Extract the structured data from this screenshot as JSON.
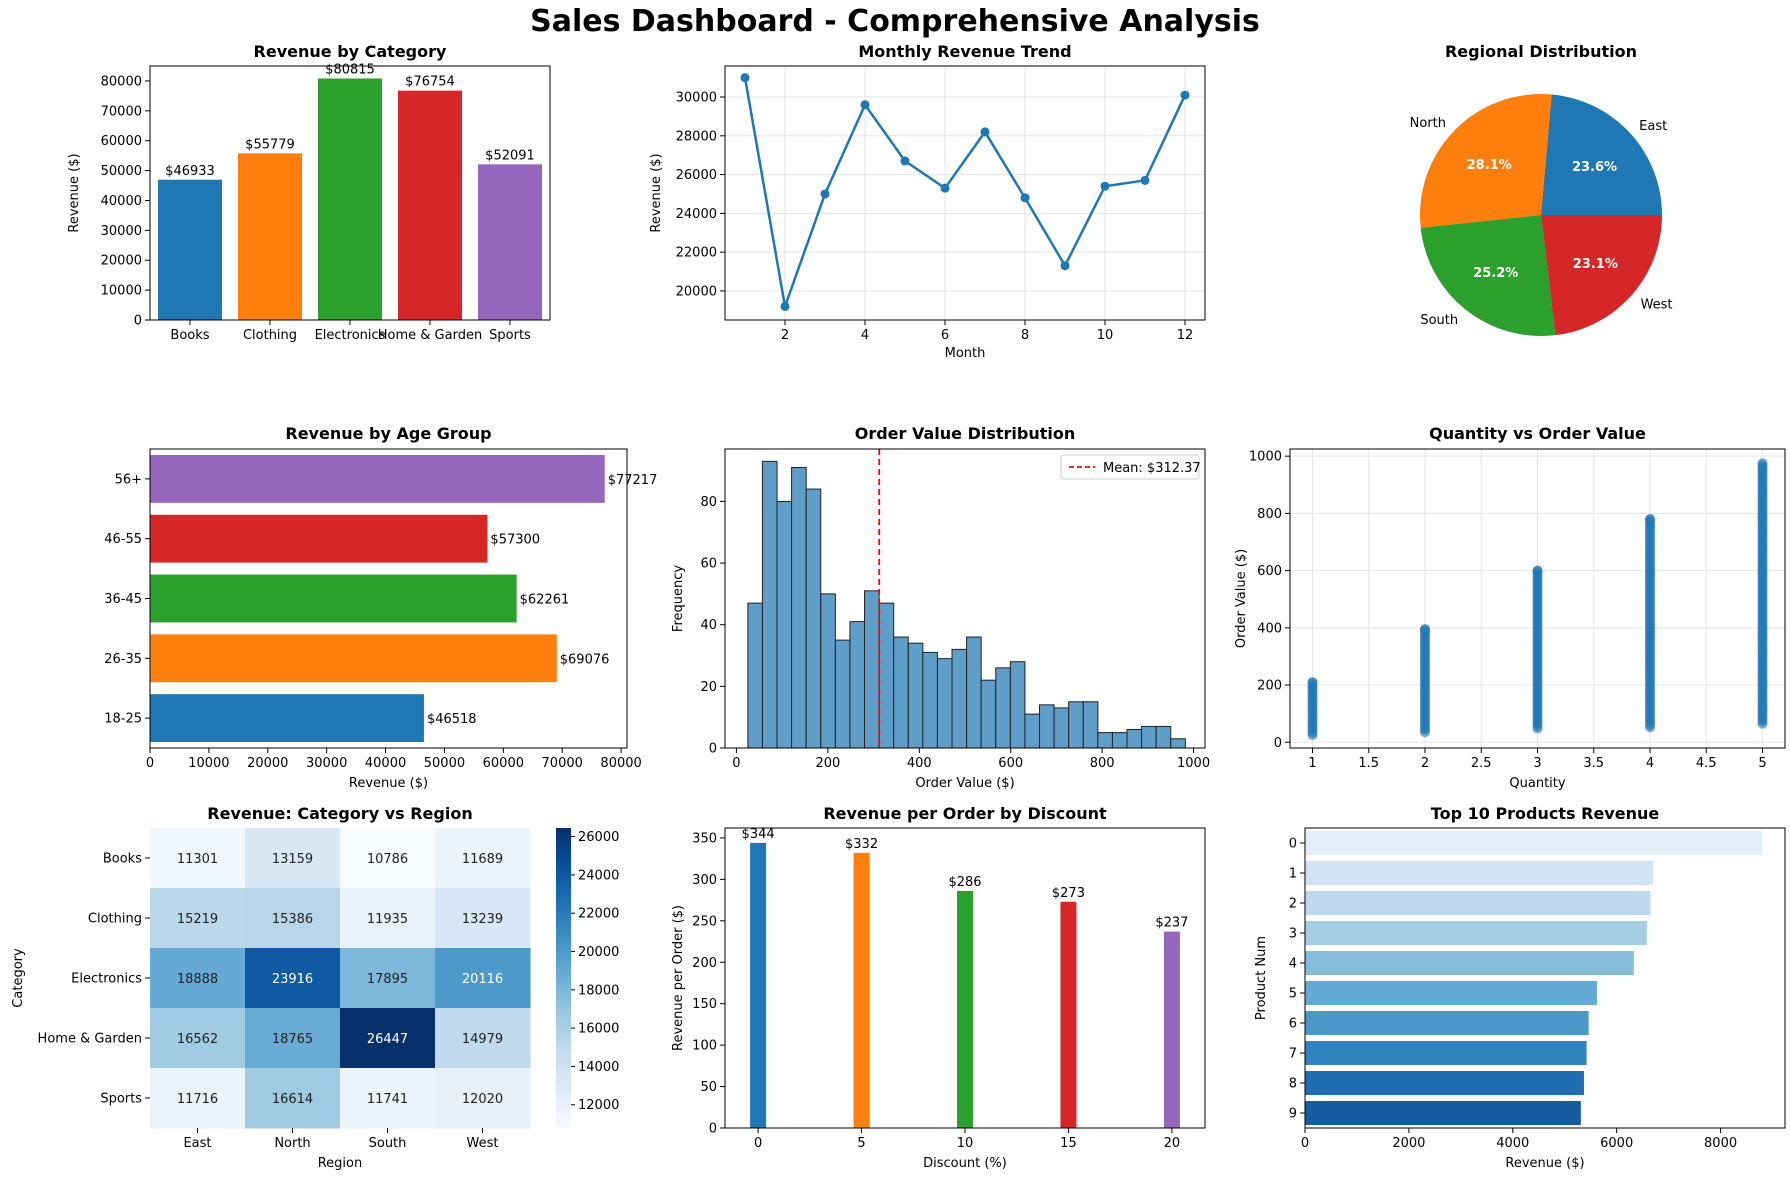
{
  "suptitle": "Sales Dashboard - Comprehensive Analysis",
  "chart_data": [
    {
      "id": "cat",
      "type": "bar",
      "title": "Revenue by Category",
      "xlabel": "",
      "ylabel": "Revenue ($)",
      "categories": [
        "Books",
        "Clothing",
        "Electronics",
        "Home & Garden",
        "Sports"
      ],
      "values": [
        46933,
        55779,
        80815,
        76754,
        52091
      ],
      "value_labels": [
        "$46933",
        "$55779",
        "$80815",
        "$76754",
        "$52091"
      ],
      "colors": [
        "#1f77b4",
        "#ff7f0e",
        "#2ca02c",
        "#d62728",
        "#9467bd"
      ],
      "ylim": [
        0,
        85000
      ],
      "yticks": [
        0,
        10000,
        20000,
        30000,
        40000,
        50000,
        60000,
        70000,
        80000
      ],
      "grid": false
    },
    {
      "id": "month",
      "type": "line",
      "title": "Monthly Revenue Trend",
      "xlabel": "Month",
      "ylabel": "Revenue ($)",
      "x": [
        1,
        2,
        3,
        4,
        5,
        6,
        7,
        8,
        9,
        10,
        11,
        12
      ],
      "y": [
        31000,
        19200,
        25000,
        29600,
        26700,
        25300,
        28200,
        24800,
        21300,
        25400,
        25700,
        30100
      ],
      "xlim": [
        0.5,
        12.5
      ],
      "ylim": [
        18500,
        31600
      ],
      "xticks": [
        2,
        4,
        6,
        8,
        10,
        12
      ],
      "yticks": [
        20000,
        22000,
        24000,
        26000,
        28000,
        30000
      ],
      "color": "#1f77b4",
      "grid": true
    },
    {
      "id": "region",
      "type": "pie",
      "title": "Regional Distribution",
      "labels": [
        "East",
        "North",
        "South",
        "West"
      ],
      "values": [
        23.6,
        28.1,
        25.2,
        23.1
      ],
      "pct_labels": [
        "23.6%",
        "28.1%",
        "25.2%",
        "23.1%"
      ],
      "colors": [
        "#1f77b4",
        "#ff7f0e",
        "#2ca02c",
        "#d62728"
      ]
    },
    {
      "id": "age",
      "type": "bar",
      "orientation": "horizontal",
      "title": "Revenue by Age Group",
      "xlabel": "Revenue ($)",
      "ylabel": "",
      "categories": [
        "18-25",
        "26-35",
        "36-45",
        "46-55",
        "56+"
      ],
      "values": [
        46518,
        69076,
        62261,
        57300,
        77217
      ],
      "value_labels": [
        "$46518",
        "$69076",
        "$62261",
        "$57300",
        "$77217"
      ],
      "colors": [
        "#1f77b4",
        "#ff7f0e",
        "#2ca02c",
        "#d62728",
        "#9467bd"
      ],
      "xlim": [
        0,
        81000
      ],
      "xticks": [
        0,
        10000,
        20000,
        30000,
        40000,
        50000,
        60000,
        70000,
        80000
      ],
      "grid": false
    },
    {
      "id": "hist",
      "type": "bar",
      "subtype": "histogram",
      "title": "Order Value Distribution",
      "xlabel": "Order Value ($)",
      "ylabel": "Frequency",
      "bin_start": 25,
      "bin_width": 31.9,
      "counts": [
        47,
        93,
        80,
        91,
        84,
        50,
        35,
        41,
        51,
        47,
        36,
        34,
        31,
        29,
        32,
        36,
        22,
        26,
        28,
        11,
        14,
        13,
        15,
        15,
        5,
        5,
        6,
        7,
        7,
        3
      ],
      "mean_line": {
        "x": 312.37,
        "label": "Mean: $312.37",
        "color": "#ff0000"
      },
      "legend": "top-right",
      "xlim": [
        -25,
        1025
      ],
      "ylim": [
        0,
        97
      ],
      "xticks": [
        0,
        200,
        400,
        600,
        800,
        1000
      ],
      "yticks": [
        0,
        20,
        40,
        60,
        80
      ],
      "color": "#5f9ec9",
      "grid": false
    },
    {
      "id": "scatter",
      "type": "scatter",
      "title": "Quantity vs Order Value",
      "xlabel": "Quantity",
      "ylabel": "Order Value ($)",
      "series": [
        {
          "x": 1,
          "y_min": 25,
          "y_max": 210
        },
        {
          "x": 2,
          "y_min": 35,
          "y_max": 395
        },
        {
          "x": 3,
          "y_min": 48,
          "y_max": 600
        },
        {
          "x": 4,
          "y_min": 52,
          "y_max": 780
        },
        {
          "x": 5,
          "y_min": 65,
          "y_max": 975
        }
      ],
      "xlim": [
        0.8,
        5.2
      ],
      "ylim": [
        -20,
        1025
      ],
      "xticks": [
        1.0,
        1.5,
        2.0,
        2.5,
        3.0,
        3.5,
        4.0,
        4.5,
        5.0
      ],
      "yticks": [
        0,
        200,
        400,
        600,
        800,
        1000
      ],
      "color": "#1f77b4",
      "grid": true
    },
    {
      "id": "heat",
      "type": "heatmap",
      "title": "Revenue: Category vs Region",
      "xlabel": "Region",
      "ylabel": "Category",
      "columns": [
        "East",
        "North",
        "South",
        "West"
      ],
      "rows": [
        "Books",
        "Clothing",
        "Electronics",
        "Home & Garden",
        "Sports"
      ],
      "values": [
        [
          11301,
          13159,
          10786,
          11689
        ],
        [
          15219,
          15386,
          11935,
          13239
        ],
        [
          18888,
          23916,
          17895,
          20116
        ],
        [
          16562,
          18765,
          26447,
          14979
        ],
        [
          11716,
          16614,
          11741,
          12020
        ]
      ],
      "vmin": 10786,
      "vmax": 26447,
      "colorbar_ticks": [
        12000,
        14000,
        16000,
        18000,
        20000,
        22000,
        24000,
        26000
      ],
      "colormap": "Blues"
    },
    {
      "id": "disc",
      "type": "bar",
      "title": "Revenue per Order by Discount",
      "xlabel": "Discount (%)",
      "ylabel": "Revenue per Order ($)",
      "categories": [
        0,
        5,
        10,
        15,
        20
      ],
      "values": [
        344,
        332,
        286,
        273,
        237
      ],
      "value_labels": [
        "$344",
        "$332",
        "$286",
        "$273",
        "$237"
      ],
      "colors": [
        "#1f77b4",
        "#ff7f0e",
        "#2ca02c",
        "#d62728",
        "#9467bd"
      ],
      "xlim": [
        -1.6,
        21.6
      ],
      "ylim": [
        0,
        362
      ],
      "xticks": [
        0,
        5,
        10,
        15,
        20
      ],
      "yticks": [
        0,
        50,
        100,
        150,
        200,
        250,
        300,
        350
      ],
      "grid": false
    },
    {
      "id": "top",
      "type": "bar",
      "orientation": "horizontal",
      "title": "Top 10 Products Revenue",
      "xlabel": "Revenue ($)",
      "ylabel": "Product Num",
      "categories": [
        "0",
        "1",
        "2",
        "3",
        "4",
        "5",
        "6",
        "7",
        "8",
        "9"
      ],
      "values": [
        8800,
        6700,
        6650,
        6580,
        6330,
        5620,
        5460,
        5420,
        5370,
        5310
      ],
      "colors": [
        "#e3eef8",
        "#d2e3f3",
        "#bfd8ed",
        "#a5cde3",
        "#85bcdc",
        "#65aad4",
        "#4a98c9",
        "#3383be",
        "#1f6eb3",
        "#175ca0"
      ],
      "xlim": [
        0,
        9240
      ],
      "xticks": [
        0,
        2000,
        4000,
        6000,
        8000
      ],
      "grid": false
    }
  ]
}
